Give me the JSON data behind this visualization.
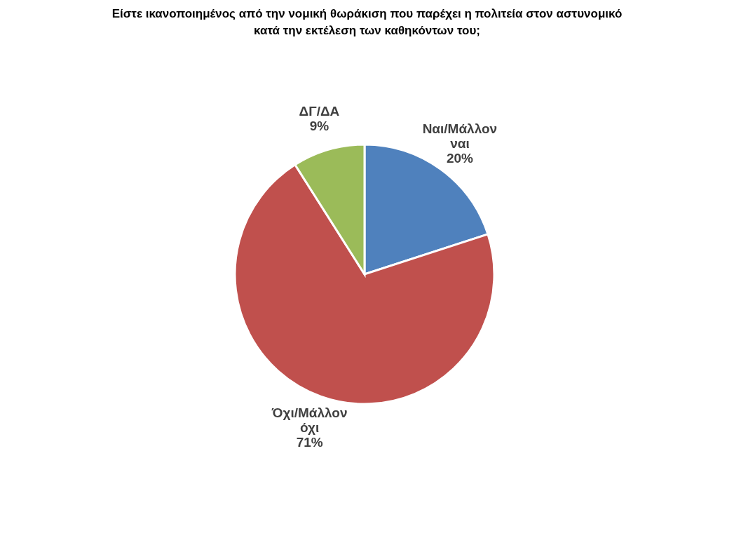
{
  "chart_data": {
    "type": "pie",
    "title": "Είστε ικανοποιημένος από την νομική θωράκιση που παρέχει η πολιτεία στον αστυνομικό κατά την εκτέλεση των καθηκόντων του;",
    "categories": [
      "Ναι/Μάλλον ναι",
      "Όχι/Μάλλον όχι",
      "ΔΓ/ΔΑ"
    ],
    "values": [
      20,
      71,
      9
    ],
    "value_labels": [
      "20%",
      "71%",
      "9%"
    ],
    "colors": [
      "#4f81bd",
      "#c0504d",
      "#9bbb59"
    ],
    "legend": false
  }
}
